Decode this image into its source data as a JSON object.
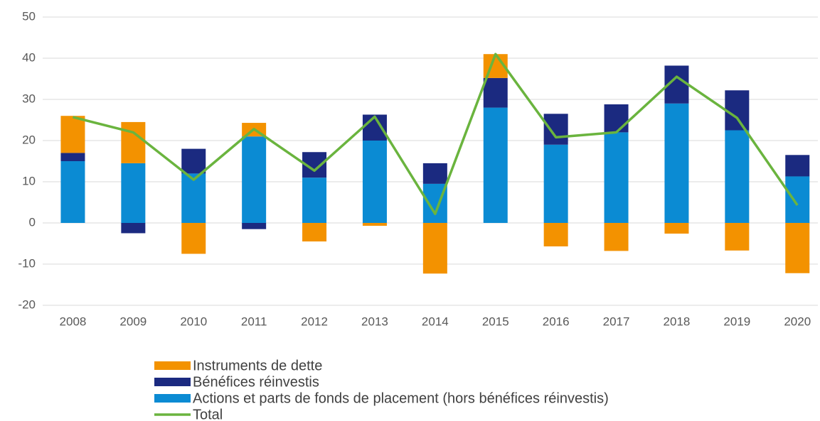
{
  "chart_data": {
    "type": "bar",
    "stacked": true,
    "categories": [
      "2008",
      "2009",
      "2010",
      "2011",
      "2012",
      "2013",
      "2014",
      "2015",
      "2016",
      "2017",
      "2018",
      "2019",
      "2020"
    ],
    "series": [
      {
        "name": "Instruments de dette",
        "color": "#f39200",
        "values": [
          9,
          10,
          -7.5,
          3.3,
          -4.5,
          -0.7,
          -12.3,
          5.8,
          -5.7,
          -6.8,
          -2.6,
          -6.7,
          -12.2
        ]
      },
      {
        "name": "Bénéfices réinvestis",
        "color": "#1b2a80",
        "values": [
          2,
          -2.5,
          6,
          -1.5,
          6.2,
          6.3,
          5,
          7.2,
          7.5,
          6.8,
          9.2,
          9.7,
          5.2
        ]
      },
      {
        "name": "Actions et parts de fonds de placement (hors bénéfices réinvestis)",
        "color": "#0b8bd3",
        "values": [
          15,
          14.5,
          12,
          21,
          11,
          20,
          9.5,
          28,
          19,
          22,
          29,
          22.5,
          11.3
        ]
      },
      {
        "name": "Total",
        "type": "line",
        "color": "#6ab43e",
        "values": [
          25.7,
          22,
          10.5,
          22.8,
          12.7,
          25.8,
          2.2,
          41,
          20.8,
          22,
          35.5,
          25.5,
          4.3
        ]
      }
    ],
    "ylim": [
      -20,
      50
    ],
    "yticks": [
      -20,
      -10,
      0,
      10,
      20,
      30,
      40,
      50
    ],
    "grid": true
  }
}
